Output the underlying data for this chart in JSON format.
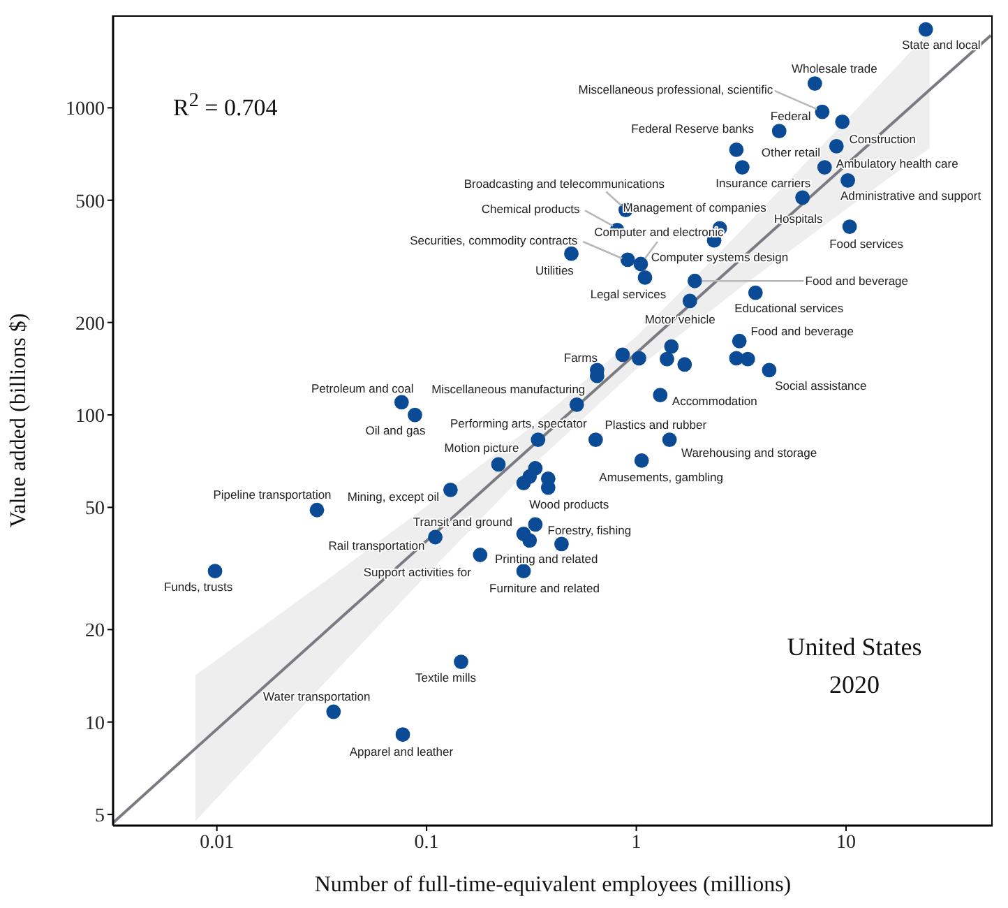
{
  "chart_data": {
    "type": "scatter",
    "xlabel": "Number of full-time-equivalent employees (millions)",
    "ylabel": "Value added (billions $)",
    "log": "xy",
    "xlim": [
      0.0032,
      50
    ],
    "ylim": [
      4.6,
      2000
    ],
    "xticks": [
      0.01,
      0.1,
      1,
      10
    ],
    "yticks": [
      5,
      10,
      20,
      50,
      100,
      200,
      500,
      1000
    ],
    "series": [
      {
        "color": "#0b4a94",
        "marker": "circle",
        "x": [
          24,
          7.1,
          7.7,
          9.6,
          4.8,
          3.0,
          9.0,
          3.2,
          7.9,
          6.2,
          10.2,
          10.4,
          1.9,
          3.7,
          3.1,
          3.0,
          3.4,
          4.3,
          0.89,
          2.5,
          0.81,
          1.05,
          0.91,
          2.35,
          1.1,
          0.49,
          1.8,
          0.86,
          1.03,
          1.47,
          1.4,
          1.7,
          0.65,
          0.65,
          1.3,
          0.52,
          0.076,
          0.088,
          0.03,
          0.0098,
          0.036,
          0.077,
          0.13,
          0.11,
          0.33,
          0.29,
          0.31,
          0.44,
          0.18,
          0.29,
          0.34,
          0.64,
          1.44,
          1.06,
          0.22,
          0.33,
          0.31,
          0.29,
          0.38,
          0.38,
          0.146
        ],
        "values": [
          1800,
          1200,
          970,
          900,
          840,
          730,
          750,
          640,
          640,
          510,
          580,
          410,
          273,
          250,
          174,
          153,
          152,
          140,
          465,
          405,
          400,
          310,
          320,
          370,
          280,
          335,
          235,
          157,
          153,
          167,
          152,
          146,
          140,
          134,
          116,
          108,
          110,
          100,
          49,
          31,
          10.8,
          9.1,
          57,
          40,
          44,
          41,
          39,
          38,
          35,
          31,
          83,
          83,
          83,
          71,
          69,
          67,
          63,
          60,
          62,
          58,
          15.7
        ]
      },
      {
        "type": "line",
        "marker": "none",
        "color": "#7a7a82",
        "x": [
          0.0032,
          0.0079,
          0.0316,
          0.1,
          0.316,
          1,
          3.16,
          10,
          25,
          49
        ],
        "values": [
          4.7,
          8.2,
          19.2,
          38.9,
          78.7,
          159,
          322,
          652,
          1143,
          1720
        ],
        "lower": [
          null,
          4.75,
          13.1,
          30.1,
          67.8,
          141,
          261,
          467,
          738,
          null
        ],
        "upper": [
          null,
          14.2,
          28.2,
          50.4,
          91.4,
          180,
          398,
          910,
          1770,
          null
        ]
      }
    ],
    "annotations": [
      "R$^{2}$ = 0.704",
      "United States",
      "2020",
      {
        "text": "State and local",
        "x": 24,
        "y": 1800
      },
      {
        "text": "Wholesale trade",
        "x": 7.1,
        "y": 1200
      },
      {
        "text": "Miscellaneous professional, scientific",
        "x": 7.7,
        "y": 970
      },
      {
        "text": "Federal",
        "x": 9.6,
        "y": 900
      },
      {
        "text": "Federal Reserve banks",
        "x": 4.8,
        "y": 840
      },
      {
        "text": "Other retail",
        "x": 3.0,
        "y": 730
      },
      {
        "text": "Construction",
        "x": 9.0,
        "y": 750
      },
      {
        "text": "Insurance carriers",
        "x": 3.2,
        "y": 640
      },
      {
        "text": "Ambulatory health care",
        "x": 7.9,
        "y": 640
      },
      {
        "text": "Hospitals",
        "x": 6.2,
        "y": 510
      },
      {
        "text": "Administrative and support",
        "x": 10.2,
        "y": 580
      },
      {
        "text": "Food services",
        "x": 10.4,
        "y": 410
      },
      {
        "text": "Food and beverage",
        "x": 1.9,
        "y": 273
      },
      {
        "text": "Educational services",
        "x": 3.7,
        "y": 250
      },
      {
        "text": "Food and beverage",
        "x": 3.1,
        "y": 174
      },
      {
        "text": "Social assistance",
        "x": 4.3,
        "y": 140
      },
      {
        "text": "Broadcasting and telecommunications",
        "x": 0.89,
        "y": 465
      },
      {
        "text": "Management of companies",
        "x": 2.5,
        "y": 405
      },
      {
        "text": "Chemical products",
        "x": 0.81,
        "y": 400
      },
      {
        "text": "Computer and electronic",
        "x": 1.05,
        "y": 310
      },
      {
        "text": "Securities, commodity contracts",
        "x": 0.91,
        "y": 320
      },
      {
        "text": "Computer systems design",
        "x": 2.35,
        "y": 370
      },
      {
        "text": "Legal services",
        "x": 1.1,
        "y": 280
      },
      {
        "text": "Utilities",
        "x": 0.49,
        "y": 335
      },
      {
        "text": "Motor vehicle",
        "x": 1.8,
        "y": 235
      },
      {
        "text": "Farms",
        "x": 0.86,
        "y": 157
      },
      {
        "text": "Accommodation",
        "x": 1.3,
        "y": 116
      },
      {
        "text": "Miscellaneous manufacturing",
        "x": 0.52,
        "y": 108
      },
      {
        "text": "Petroleum and coal",
        "x": 0.076,
        "y": 110
      },
      {
        "text": "Oil and gas",
        "x": 0.088,
        "y": 100
      },
      {
        "text": "Pipeline transportation",
        "x": 0.03,
        "y": 49
      },
      {
        "text": "Funds, trusts",
        "x": 0.0098,
        "y": 31
      },
      {
        "text": "Water transportation",
        "x": 0.036,
        "y": 10.8
      },
      {
        "text": "Apparel and leather",
        "x": 0.077,
        "y": 9.1
      },
      {
        "text": "Mining, except oil",
        "x": 0.13,
        "y": 57
      },
      {
        "text": "Rail transportation",
        "x": 0.11,
        "y": 40
      },
      {
        "text": "Transit and ground",
        "x": 0.33,
        "y": 44
      },
      {
        "text": "Printing and related",
        "x": 0.31,
        "y": 39
      },
      {
        "text": "Forestry, fishing",
        "x": 0.44,
        "y": 38
      },
      {
        "text": "Support activities for",
        "x": 0.18,
        "y": 35
      },
      {
        "text": "Furniture and related",
        "x": 0.29,
        "y": 31
      },
      {
        "text": "Performing arts, spectator",
        "x": 0.34,
        "y": 83
      },
      {
        "text": "Plastics and rubber",
        "x": 0.64,
        "y": 83
      },
      {
        "text": "Warehousing and storage",
        "x": 1.44,
        "y": 83
      },
      {
        "text": "Amusements, gambling",
        "x": 1.06,
        "y": 71
      },
      {
        "text": "Motion picture",
        "x": 0.22,
        "y": 69
      },
      {
        "text": "Wood products",
        "x": 0.38,
        "y": 58
      },
      {
        "text": "Textile mills",
        "x": 0.146,
        "y": 15.7
      }
    ]
  }
}
